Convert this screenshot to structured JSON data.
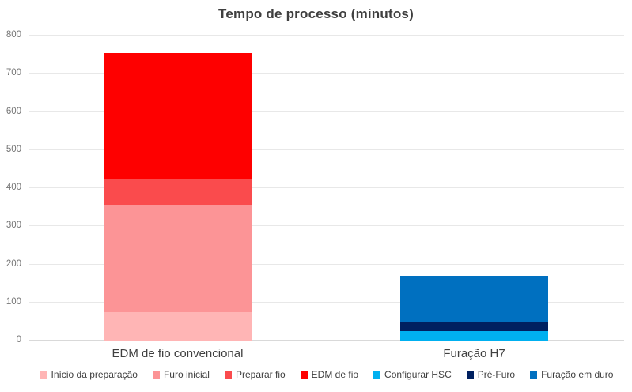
{
  "chart_data": {
    "type": "bar",
    "stacked": true,
    "title": "Tempo de processo (minutos)",
    "categories": [
      "EDM de fio convencional",
      "Furação H7"
    ],
    "series": [
      {
        "name": "Início da preparação",
        "color": "#FFB5B5",
        "values": [
          75,
          0
        ]
      },
      {
        "name": "Furo inicial",
        "color": "#FC9496",
        "values": [
          280,
          0
        ]
      },
      {
        "name": "Preparar fio",
        "color": "#FA4B4D",
        "values": [
          70,
          0
        ]
      },
      {
        "name": "EDM de fio",
        "color": "#FE0000",
        "values": [
          330,
          0
        ]
      },
      {
        "name": "Configurar HSC",
        "color": "#00B0F0",
        "values": [
          0,
          25
        ]
      },
      {
        "name": "Pré-Furo",
        "color": "#002060",
        "values": [
          0,
          25
        ]
      },
      {
        "name": "Furação em duro",
        "color": "#0070C0",
        "values": [
          0,
          120
        ]
      }
    ],
    "ylim": [
      0,
      800
    ],
    "ytick_step": 100,
    "yticks": [
      0,
      100,
      200,
      300,
      400,
      500,
      600,
      700,
      800
    ],
    "grid": true,
    "legend_position": "bottom"
  },
  "colors": {
    "background": "#FFFFFF",
    "gridline": "#E8E8E8",
    "axis_line": "#D9D9D9",
    "title_text": "#3F3F3F",
    "tick_text": "#757575",
    "category_text": "#404040",
    "legend_text": "#3F3F3F"
  }
}
